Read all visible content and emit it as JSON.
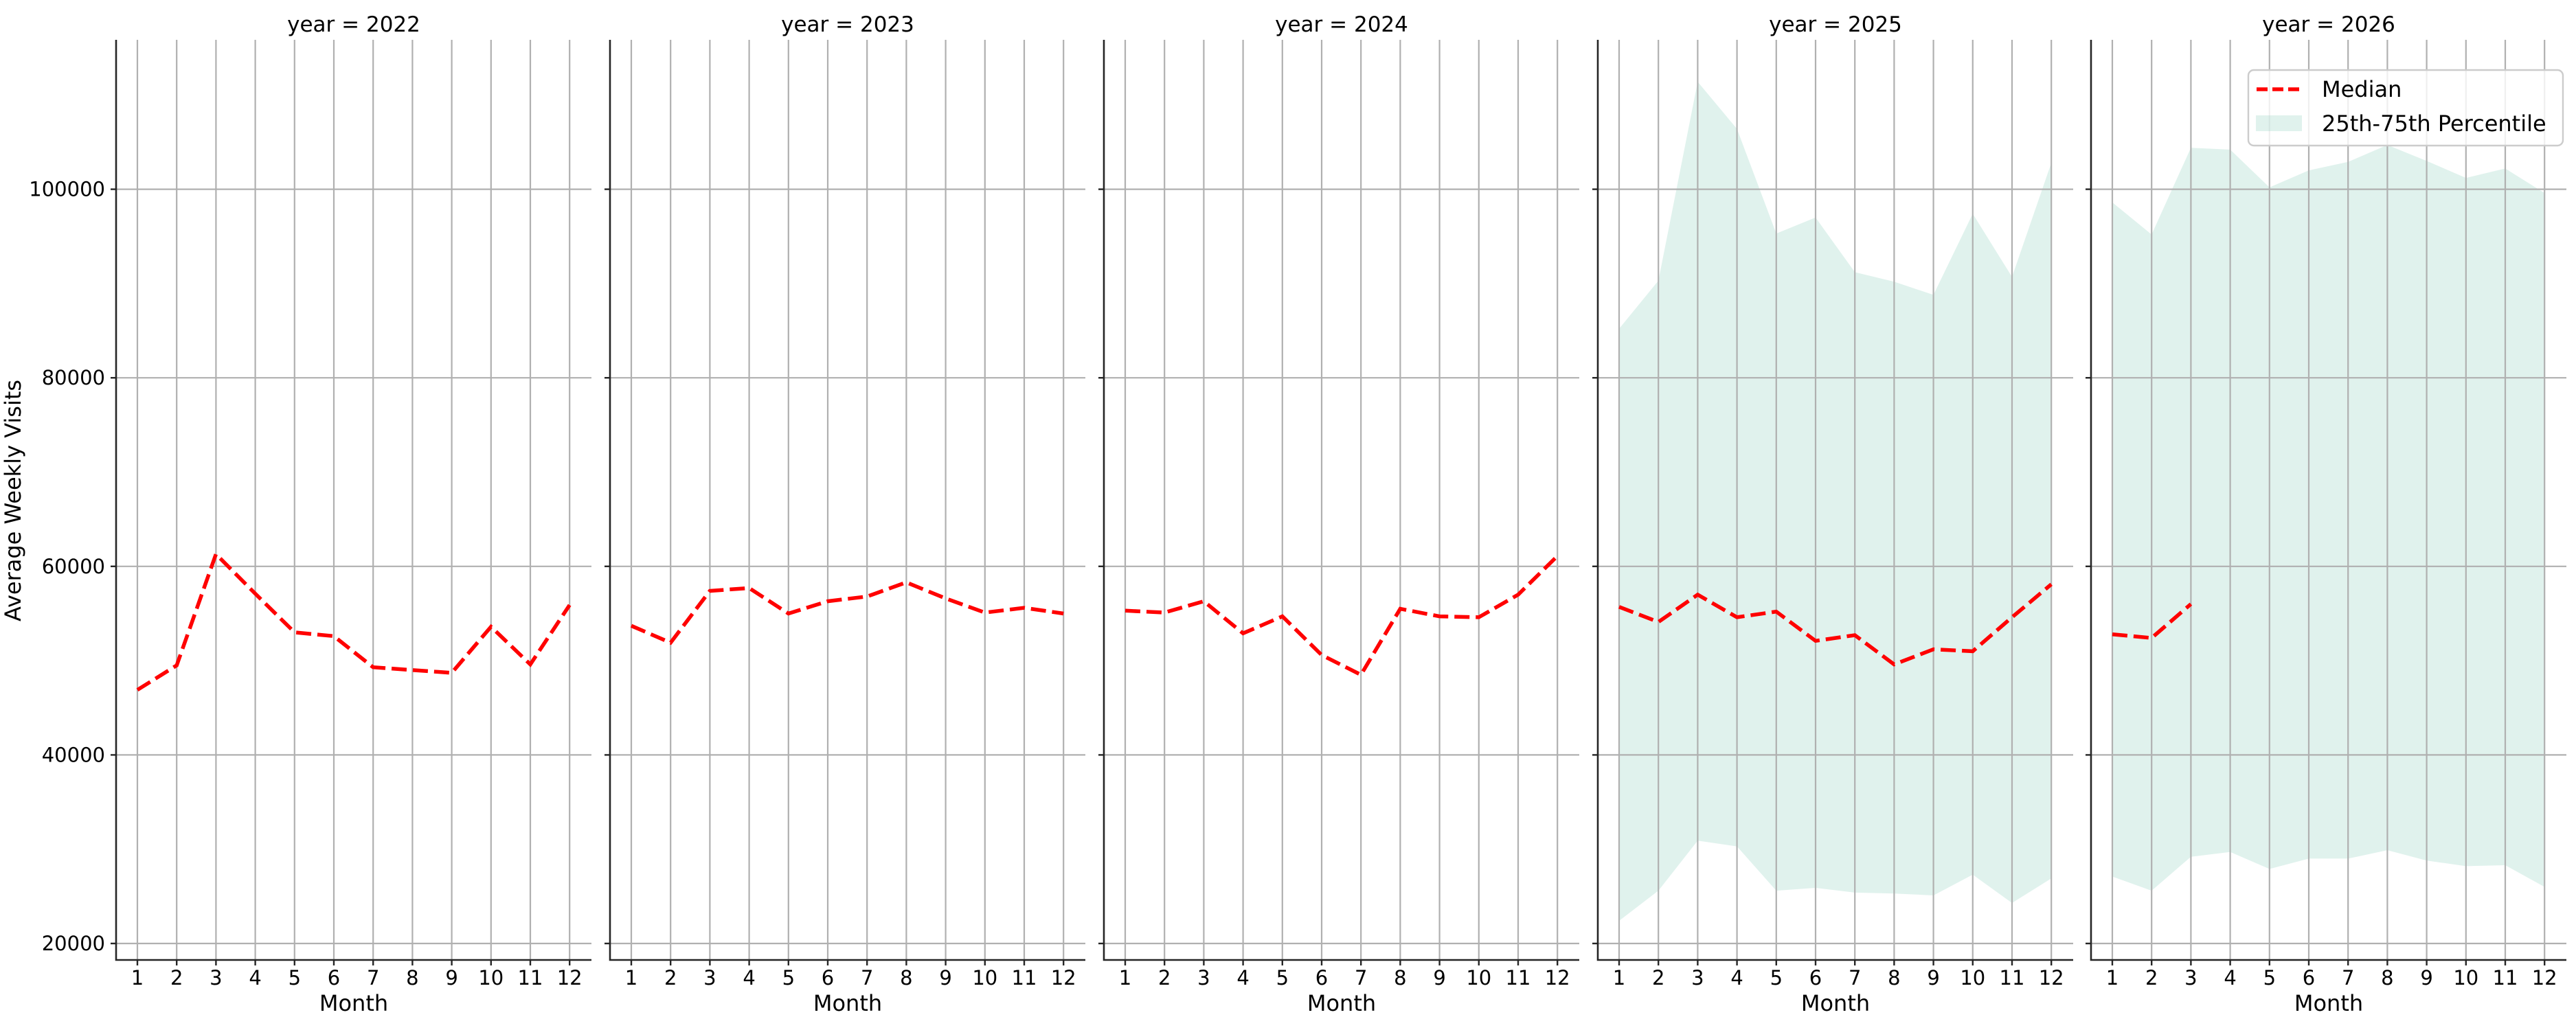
{
  "figure": {
    "ylabel": "Average Weekly Visits",
    "xlabel": "Month",
    "colors": {
      "median": "#ff0000",
      "band": "#8fd1c0",
      "band_opacity": 0.28,
      "grid": "#b0b0b0",
      "spine": "#262626"
    },
    "yticks": [
      20000,
      40000,
      60000,
      80000,
      100000
    ],
    "ytick_labels": [
      "20000",
      "40000",
      "60000",
      "80000",
      "100000"
    ],
    "xticks": [
      1,
      2,
      3,
      4,
      5,
      6,
      7,
      8,
      9,
      10,
      11,
      12
    ],
    "xtick_labels": [
      "1",
      "2",
      "3",
      "4",
      "5",
      "6",
      "7",
      "8",
      "9",
      "10",
      "11",
      "12"
    ],
    "legend": {
      "median_label": "Median",
      "band_label": "25th-75th Percentile"
    }
  },
  "chart_data": {
    "type": "line",
    "title": "",
    "xlabel": "Month",
    "ylabel": "Average Weekly Visits",
    "ylim": [
      18200,
      115800
    ],
    "xlim": [
      0.45,
      12.55
    ],
    "grid": true,
    "legend_position": "upper right (last panel)",
    "facet": "year",
    "x": [
      1,
      2,
      3,
      4,
      5,
      6,
      7,
      8,
      9,
      10,
      11,
      12
    ],
    "panels": [
      {
        "title": "year = 2022",
        "series": [
          {
            "name": "Median",
            "values": [
              46900,
              49500,
              61300,
              57100,
              53000,
              52600,
              49300,
              49000,
              48700,
              53600,
              49600,
              55900
            ]
          }
        ]
      },
      {
        "title": "year = 2023",
        "series": [
          {
            "name": "Median",
            "values": [
              53700,
              51900,
              57400,
              57700,
              55000,
              56300,
              56800,
              58300,
              56600,
              55100,
              55600,
              55000
            ]
          }
        ]
      },
      {
        "title": "year = 2024",
        "series": [
          {
            "name": "Median",
            "values": [
              55300,
              55100,
              56300,
              52900,
              54700,
              50600,
              48500,
              55500,
              54700,
              54600,
              57000,
              61100
            ]
          }
        ]
      },
      {
        "title": "year = 2025",
        "series": [
          {
            "name": "Median",
            "values": [
              55700,
              54100,
              57000,
              54600,
              55200,
              52100,
              52700,
              49600,
              51200,
              51000,
              54600,
              58100
            ]
          },
          {
            "name": "25th Percentile",
            "values": [
              22400,
              25600,
              30900,
              30300,
              25600,
              25900,
              25400,
              25300,
              25100,
              27300,
              24300,
              26900
            ]
          },
          {
            "name": "75th Percentile",
            "values": [
              85200,
              90300,
              111400,
              106400,
              95300,
              97000,
              91200,
              90200,
              88800,
              97400,
              90700,
              102800
            ]
          }
        ]
      },
      {
        "title": "year = 2026",
        "series": [
          {
            "name": "Median",
            "values": [
              52800,
              52400,
              56000
            ]
          },
          {
            "name": "25th Percentile",
            "values": [
              27100,
              25600,
              29200,
              29700,
              27900,
              29000,
              29000,
              29900,
              28800,
              28200,
              28300,
              26000
            ]
          },
          {
            "name": "75th Percentile",
            "values": [
              98600,
              95200,
              104400,
              104200,
              100200,
              102000,
              102900,
              104700,
              103000,
              101200,
              102200,
              99600
            ]
          }
        ]
      }
    ]
  }
}
